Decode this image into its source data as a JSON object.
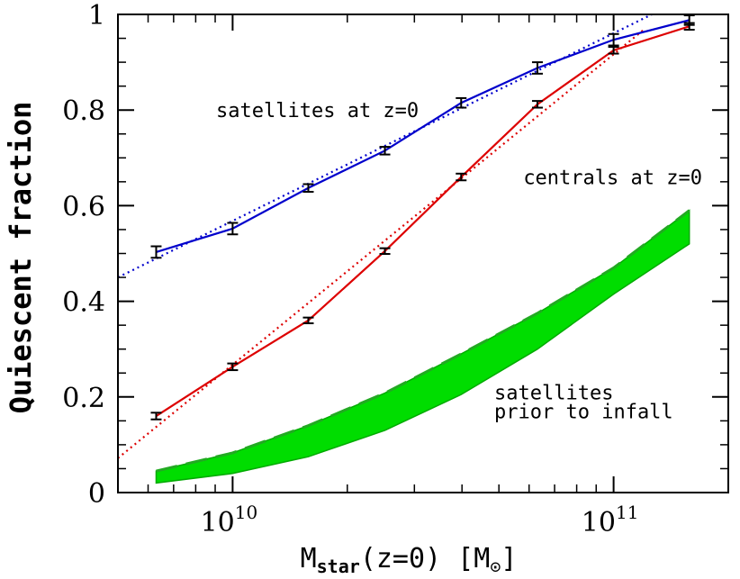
{
  "chart_data": {
    "type": "line",
    "xlabel": {
      "main": "M",
      "sub": "star",
      "rest": "(z=0) [M",
      "sub2": "⊙",
      "end": "]"
    },
    "ylabel": "Quiescent fraction",
    "xscale": "log",
    "xlim": [
      5000000000,
      200000000000
    ],
    "ylim": [
      0,
      1
    ],
    "x_ticks": [
      {
        "base": "10",
        "exp": "10",
        "value": 10000000000
      },
      {
        "base": "10",
        "exp": "11",
        "value": 100000000000
      }
    ],
    "y_ticks": [
      "0",
      "0.2",
      "0.4",
      "0.6",
      "0.8",
      "1"
    ],
    "grid": false,
    "series": [
      {
        "key": "satellites",
        "color": "#0000cc",
        "x": [
          6300000000,
          10000000000,
          15800000000,
          25100000000,
          39800000000,
          63100000000,
          100000000000,
          158000000000
        ],
        "y": [
          0.503,
          0.552,
          0.637,
          0.715,
          0.815,
          0.888,
          0.947,
          0.988
        ],
        "err": [
          0.012,
          0.012,
          0.008,
          0.008,
          0.01,
          0.012,
          0.012,
          0.01
        ],
        "fit_x": [
          5000000000,
          126000000000
        ],
        "fit_y": [
          0.45,
          1.0
        ]
      },
      {
        "key": "centrals",
        "color": "#dd0000",
        "x": [
          6300000000,
          10000000000,
          15800000000,
          25100000000,
          39800000000,
          63100000000,
          100000000000,
          158000000000
        ],
        "y": [
          0.16,
          0.263,
          0.36,
          0.505,
          0.66,
          0.812,
          0.925,
          0.975
        ],
        "err": [
          0.007,
          0.007,
          0.006,
          0.006,
          0.007,
          0.007,
          0.007,
          0.007
        ],
        "fit_x": [
          5000000000,
          120000000000
        ],
        "fit_y": [
          0.072,
          0.968
        ]
      },
      {
        "key": "satellites-prior-to-infall",
        "color": "#00dd00",
        "band": true,
        "x": [
          6300000000,
          10000000000,
          15800000000,
          25100000000,
          39800000000,
          63100000000,
          100000000000,
          158000000000
        ],
        "y_low": [
          0.02,
          0.04,
          0.075,
          0.13,
          0.205,
          0.3,
          0.415,
          0.52
        ],
        "y_high": [
          0.045,
          0.083,
          0.14,
          0.208,
          0.29,
          0.375,
          0.47,
          0.59
        ]
      }
    ],
    "annotations": [
      {
        "text": "satellites at z=0",
        "x": 2500000000,
        "y": 0.8
      },
      {
        "text": "centrals at z=0",
        "x": 65000000000,
        "y": 0.66
      },
      {
        "text": "satellites",
        "x": 40000000000,
        "y": 0.21
      },
      {
        "text": "prior to infall",
        "x": 40000000000,
        "y": 0.17
      }
    ]
  }
}
